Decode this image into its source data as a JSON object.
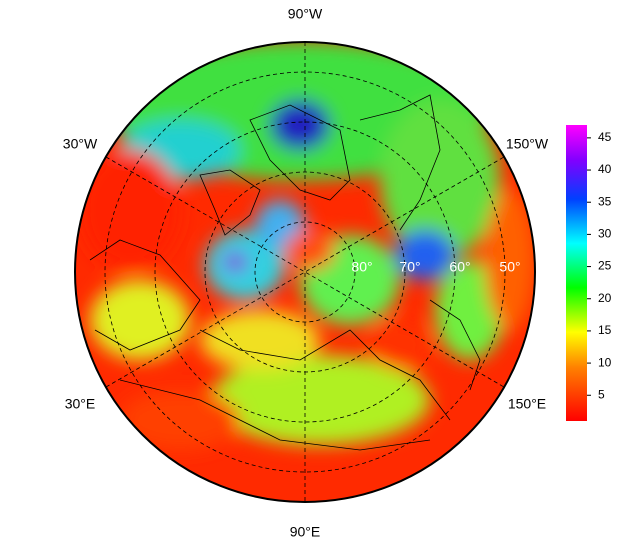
{
  "map": {
    "meridian_labels": [
      "90°W",
      "30°W",
      "150°W",
      "30°E",
      "150°E",
      "90°E"
    ],
    "latitude_labels": [
      "80°",
      "70°",
      "60°",
      "50°"
    ]
  },
  "colorbar": {
    "range": [
      1,
      47
    ],
    "ticks": [
      5,
      10,
      15,
      20,
      25,
      30,
      35,
      40,
      45
    ]
  }
}
